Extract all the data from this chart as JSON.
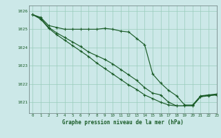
{
  "title": "Graphe pression niveau de la mer (hPa)",
  "background_color": "#cce8e8",
  "grid_color": "#99ccbb",
  "line_color": "#1a5c28",
  "xlim": [
    -0.5,
    23
  ],
  "ylim": [
    1020.4,
    1026.3
  ],
  "yticks": [
    1021,
    1022,
    1023,
    1024,
    1025,
    1026
  ],
  "xticks": [
    0,
    1,
    2,
    3,
    4,
    5,
    6,
    7,
    8,
    9,
    10,
    11,
    12,
    13,
    14,
    15,
    16,
    17,
    18,
    19,
    20,
    21,
    22,
    23
  ],
  "series": [
    [
      1025.8,
      1025.65,
      1025.2,
      1025.1,
      1025.0,
      1025.0,
      1025.0,
      1025.0,
      1025.0,
      1025.05,
      1025.0,
      1024.9,
      1024.85,
      1024.5,
      1024.15,
      1022.55,
      1022.05,
      1021.65,
      1021.35,
      1020.85,
      1020.85,
      1021.35,
      1021.4,
      1021.45
    ],
    [
      1025.8,
      1025.6,
      1025.1,
      1024.8,
      1024.55,
      1024.3,
      1024.05,
      1023.75,
      1023.55,
      1023.35,
      1023.1,
      1022.8,
      1022.5,
      1022.2,
      1021.8,
      1021.5,
      1021.4,
      1021.0,
      1020.8,
      1020.8,
      1020.8,
      1021.3,
      1021.4,
      1021.4
    ],
    [
      1025.8,
      1025.55,
      1025.05,
      1024.7,
      1024.4,
      1024.1,
      1023.8,
      1023.5,
      1023.15,
      1022.85,
      1022.55,
      1022.25,
      1021.95,
      1021.7,
      1021.4,
      1021.2,
      1021.0,
      1020.85,
      1020.8,
      1020.8,
      1020.8,
      1021.3,
      1021.35,
      1021.4
    ]
  ]
}
